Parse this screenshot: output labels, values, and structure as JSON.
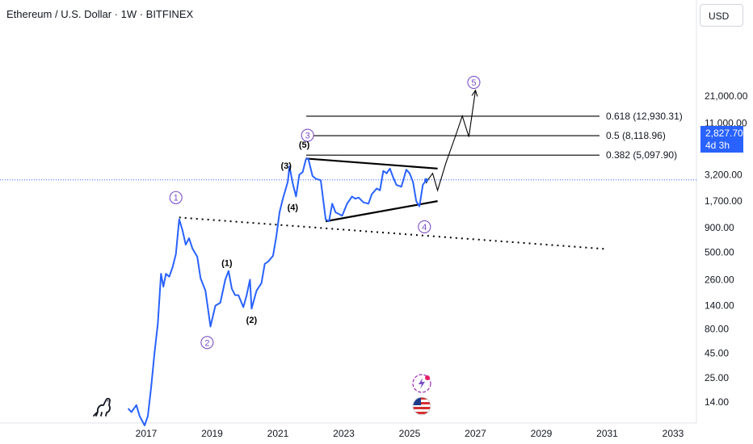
{
  "title": "Ethereum / U.S. Dollar · 1W · BITFINEX",
  "currency_button": "USD",
  "current_price": {
    "value": "2,827.70",
    "countdown": "4d 3h"
  },
  "colors": {
    "price_line": "#2962ff",
    "wave_label": "#7b4fc6",
    "structure": "#000000",
    "axis_text": "#131722",
    "price_tag": "#2962ff"
  },
  "icons": [
    "tradingview-logo-icon",
    "ideas-sparkle-icon",
    "us-flag-icon"
  ],
  "chart_data": {
    "type": "line",
    "scale": "log",
    "y_ticks": [
      {
        "value": 14,
        "label": "14.00"
      },
      {
        "value": 25,
        "label": "25.00"
      },
      {
        "value": 45,
        "label": "45.00"
      },
      {
        "value": 80,
        "label": "80.00"
      },
      {
        "value": 140,
        "label": "140.00"
      },
      {
        "value": 260,
        "label": "260.00"
      },
      {
        "value": 500,
        "label": "500.00"
      },
      {
        "value": 900,
        "label": "900.00"
      },
      {
        "value": 1700,
        "label": "1,700.00"
      },
      {
        "value": 3200,
        "label": "3,200.00"
      },
      {
        "value": 6000,
        "label": "6,000.00"
      },
      {
        "value": 11000,
        "label": "11,000.00"
      },
      {
        "value": 21000,
        "label": "21,000.00"
      }
    ],
    "x_ticks": [
      {
        "value": 2017,
        "label": "2017"
      },
      {
        "value": 2019,
        "label": "2019"
      },
      {
        "value": 2021,
        "label": "2021"
      },
      {
        "value": 2023,
        "label": "2023"
      },
      {
        "value": 2025,
        "label": "2025"
      },
      {
        "value": 2027,
        "label": "2027"
      },
      {
        "value": 2029,
        "label": "2029"
      },
      {
        "value": 2031,
        "label": "2031"
      },
      {
        "value": 2033,
        "label": "2033"
      }
    ],
    "series": [
      {
        "values": [
          [
            2016.45,
            12
          ],
          [
            2016.55,
            11
          ],
          [
            2016.7,
            13
          ],
          [
            2016.8,
            10
          ],
          [
            2016.95,
            8
          ],
          [
            2017.05,
            10
          ],
          [
            2017.15,
            20
          ],
          [
            2017.25,
            45
          ],
          [
            2017.35,
            90
          ],
          [
            2017.45,
            300
          ],
          [
            2017.52,
            220
          ],
          [
            2017.6,
            300
          ],
          [
            2017.7,
            280
          ],
          [
            2017.8,
            350
          ],
          [
            2017.9,
            480
          ],
          [
            2018.0,
            1100
          ],
          [
            2018.1,
            850
          ],
          [
            2018.2,
            600
          ],
          [
            2018.3,
            700
          ],
          [
            2018.4,
            550
          ],
          [
            2018.55,
            450
          ],
          [
            2018.65,
            270
          ],
          [
            2018.8,
            200
          ],
          [
            2018.95,
            85
          ],
          [
            2019.1,
            140
          ],
          [
            2019.25,
            150
          ],
          [
            2019.4,
            260
          ],
          [
            2019.5,
            320
          ],
          [
            2019.6,
            210
          ],
          [
            2019.7,
            180
          ],
          [
            2019.8,
            180
          ],
          [
            2019.95,
            135
          ],
          [
            2020.05,
            180
          ],
          [
            2020.15,
            260
          ],
          [
            2020.2,
            130
          ],
          [
            2020.35,
            200
          ],
          [
            2020.5,
            240
          ],
          [
            2020.6,
            380
          ],
          [
            2020.7,
            400
          ],
          [
            2020.85,
            460
          ],
          [
            2020.95,
            730
          ],
          [
            2021.05,
            1300
          ],
          [
            2021.15,
            1800
          ],
          [
            2021.3,
            2700
          ],
          [
            2021.35,
            3900
          ],
          [
            2021.45,
            2600
          ],
          [
            2021.55,
            1900
          ],
          [
            2021.65,
            3200
          ],
          [
            2021.75,
            3400
          ],
          [
            2021.85,
            4600
          ],
          [
            2021.92,
            4700
          ],
          [
            2022.05,
            3100
          ],
          [
            2022.15,
            2900
          ],
          [
            2022.3,
            2800
          ],
          [
            2022.45,
            1100
          ],
          [
            2022.55,
            1050
          ],
          [
            2022.65,
            1600
          ],
          [
            2022.75,
            1300
          ],
          [
            2022.85,
            1250
          ],
          [
            2022.95,
            1200
          ],
          [
            2023.1,
            1600
          ],
          [
            2023.25,
            1900
          ],
          [
            2023.35,
            1800
          ],
          [
            2023.45,
            1850
          ],
          [
            2023.6,
            1650
          ],
          [
            2023.75,
            1600
          ],
          [
            2023.85,
            2000
          ],
          [
            2024.0,
            2300
          ],
          [
            2024.1,
            2200
          ],
          [
            2024.2,
            3500
          ],
          [
            2024.3,
            3300
          ],
          [
            2024.4,
            3700
          ],
          [
            2024.5,
            3000
          ],
          [
            2024.6,
            2500
          ],
          [
            2024.75,
            2400
          ],
          [
            2024.9,
            3600
          ],
          [
            2025.0,
            3300
          ],
          [
            2025.1,
            2700
          ],
          [
            2025.2,
            1700
          ],
          [
            2025.3,
            1500
          ],
          [
            2025.4,
            2500
          ],
          [
            2025.5,
            2800
          ]
        ]
      }
    ],
    "projection": [
      [
        2025.5,
        2600
      ],
      [
        2025.58,
        2900
      ],
      [
        2025.7,
        3300
      ],
      [
        2025.85,
        2200
      ],
      [
        2026.1,
        4200
      ],
      [
        2026.4,
        8200
      ],
      [
        2026.6,
        13000
      ],
      [
        2026.8,
        7900
      ],
      [
        2027.0,
        24000
      ]
    ],
    "trendlines": [
      {
        "name": "triangle-upper",
        "points": [
          [
            2021.85,
            4700
          ],
          [
            2025.85,
            3700
          ]
        ]
      },
      {
        "name": "triangle-lower",
        "points": [
          [
            2022.45,
            1050
          ],
          [
            2025.85,
            1700
          ]
        ]
      },
      {
        "name": "dotted-support",
        "points": [
          [
            2018.0,
            1150
          ],
          [
            2031.0,
            540
          ]
        ]
      }
    ],
    "fib_levels": [
      {
        "label": "0.618 (12,930.31)",
        "value": 12930.31
      },
      {
        "label": "0.5 (8,118.96)",
        "value": 8118.96
      },
      {
        "label": "0.382 (5,097.90)",
        "value": 5097.9
      }
    ],
    "wave_labels": [
      {
        "label": "1",
        "x": 2017.9,
        "y": 1850,
        "circled": true
      },
      {
        "label": "2",
        "x": 2018.85,
        "y": 58,
        "circled": true
      },
      {
        "label": "3",
        "x": 2021.9,
        "y": 8200,
        "circled": true
      },
      {
        "label": "4",
        "x": 2025.45,
        "y": 920,
        "circled": true
      },
      {
        "label": "5",
        "x": 2026.95,
        "y": 29000,
        "circled": true
      },
      {
        "label": "(1)",
        "x": 2019.45,
        "y": 390,
        "circled": false
      },
      {
        "label": "(2)",
        "x": 2020.2,
        "y": 100,
        "circled": false
      },
      {
        "label": "(3)",
        "x": 2021.25,
        "y": 4000,
        "circled": false
      },
      {
        "label": "(4)",
        "x": 2021.45,
        "y": 1470,
        "circled": false
      },
      {
        "label": "(5)",
        "x": 2021.8,
        "y": 6600,
        "circled": false
      }
    ]
  }
}
